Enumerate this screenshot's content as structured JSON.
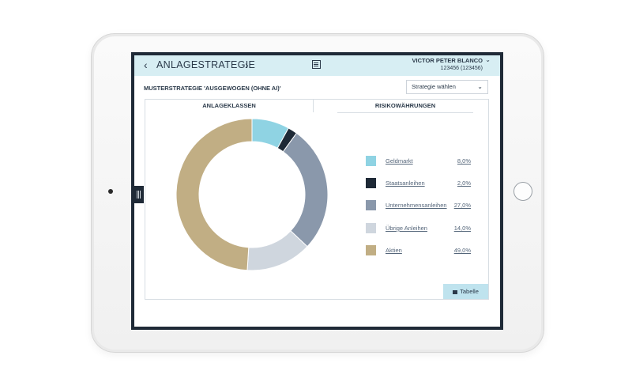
{
  "header": {
    "title": "ANLAGESTRATEGIE",
    "prev_glyph": "‹",
    "next_glyph": "›",
    "user_name": "VICTOR PETER BLANCO",
    "user_id": "123456 (123456)"
  },
  "strategy": {
    "title": "MUSTERSTRATEGIE 'AUSGEWOGEN (OHNE AI)'",
    "select_label": "Strategie wählen"
  },
  "tabs": [
    {
      "label": "ANLAGEKLASSEN",
      "active": true
    },
    {
      "label": "RISIKOWÄHRUNGEN",
      "active": false
    }
  ],
  "legend": [
    {
      "label": "Geldmarkt",
      "value": "8,0%",
      "color": "#8fd3e3"
    },
    {
      "label": "Staatsanleihen",
      "value": "2,0%",
      "color": "#1e2936"
    },
    {
      "label": "Unternehmensanleihen",
      "value": "27,0%",
      "color": "#8a98ab"
    },
    {
      "label": "Übrige Anleihen",
      "value": "14,0%",
      "color": "#cfd6de"
    },
    {
      "label": "Aktien",
      "value": "49,0%",
      "color": "#c1ae84"
    }
  ],
  "chart_data": {
    "type": "pie",
    "categories": [
      "Geldmarkt",
      "Staatsanleihen",
      "Unternehmensanleihen",
      "Übrige Anleihen",
      "Aktien"
    ],
    "values": [
      8.0,
      2.0,
      27.0,
      14.0,
      49.0
    ],
    "title": "",
    "legend_position": "right"
  },
  "table_button": {
    "label": "Tabelle"
  }
}
